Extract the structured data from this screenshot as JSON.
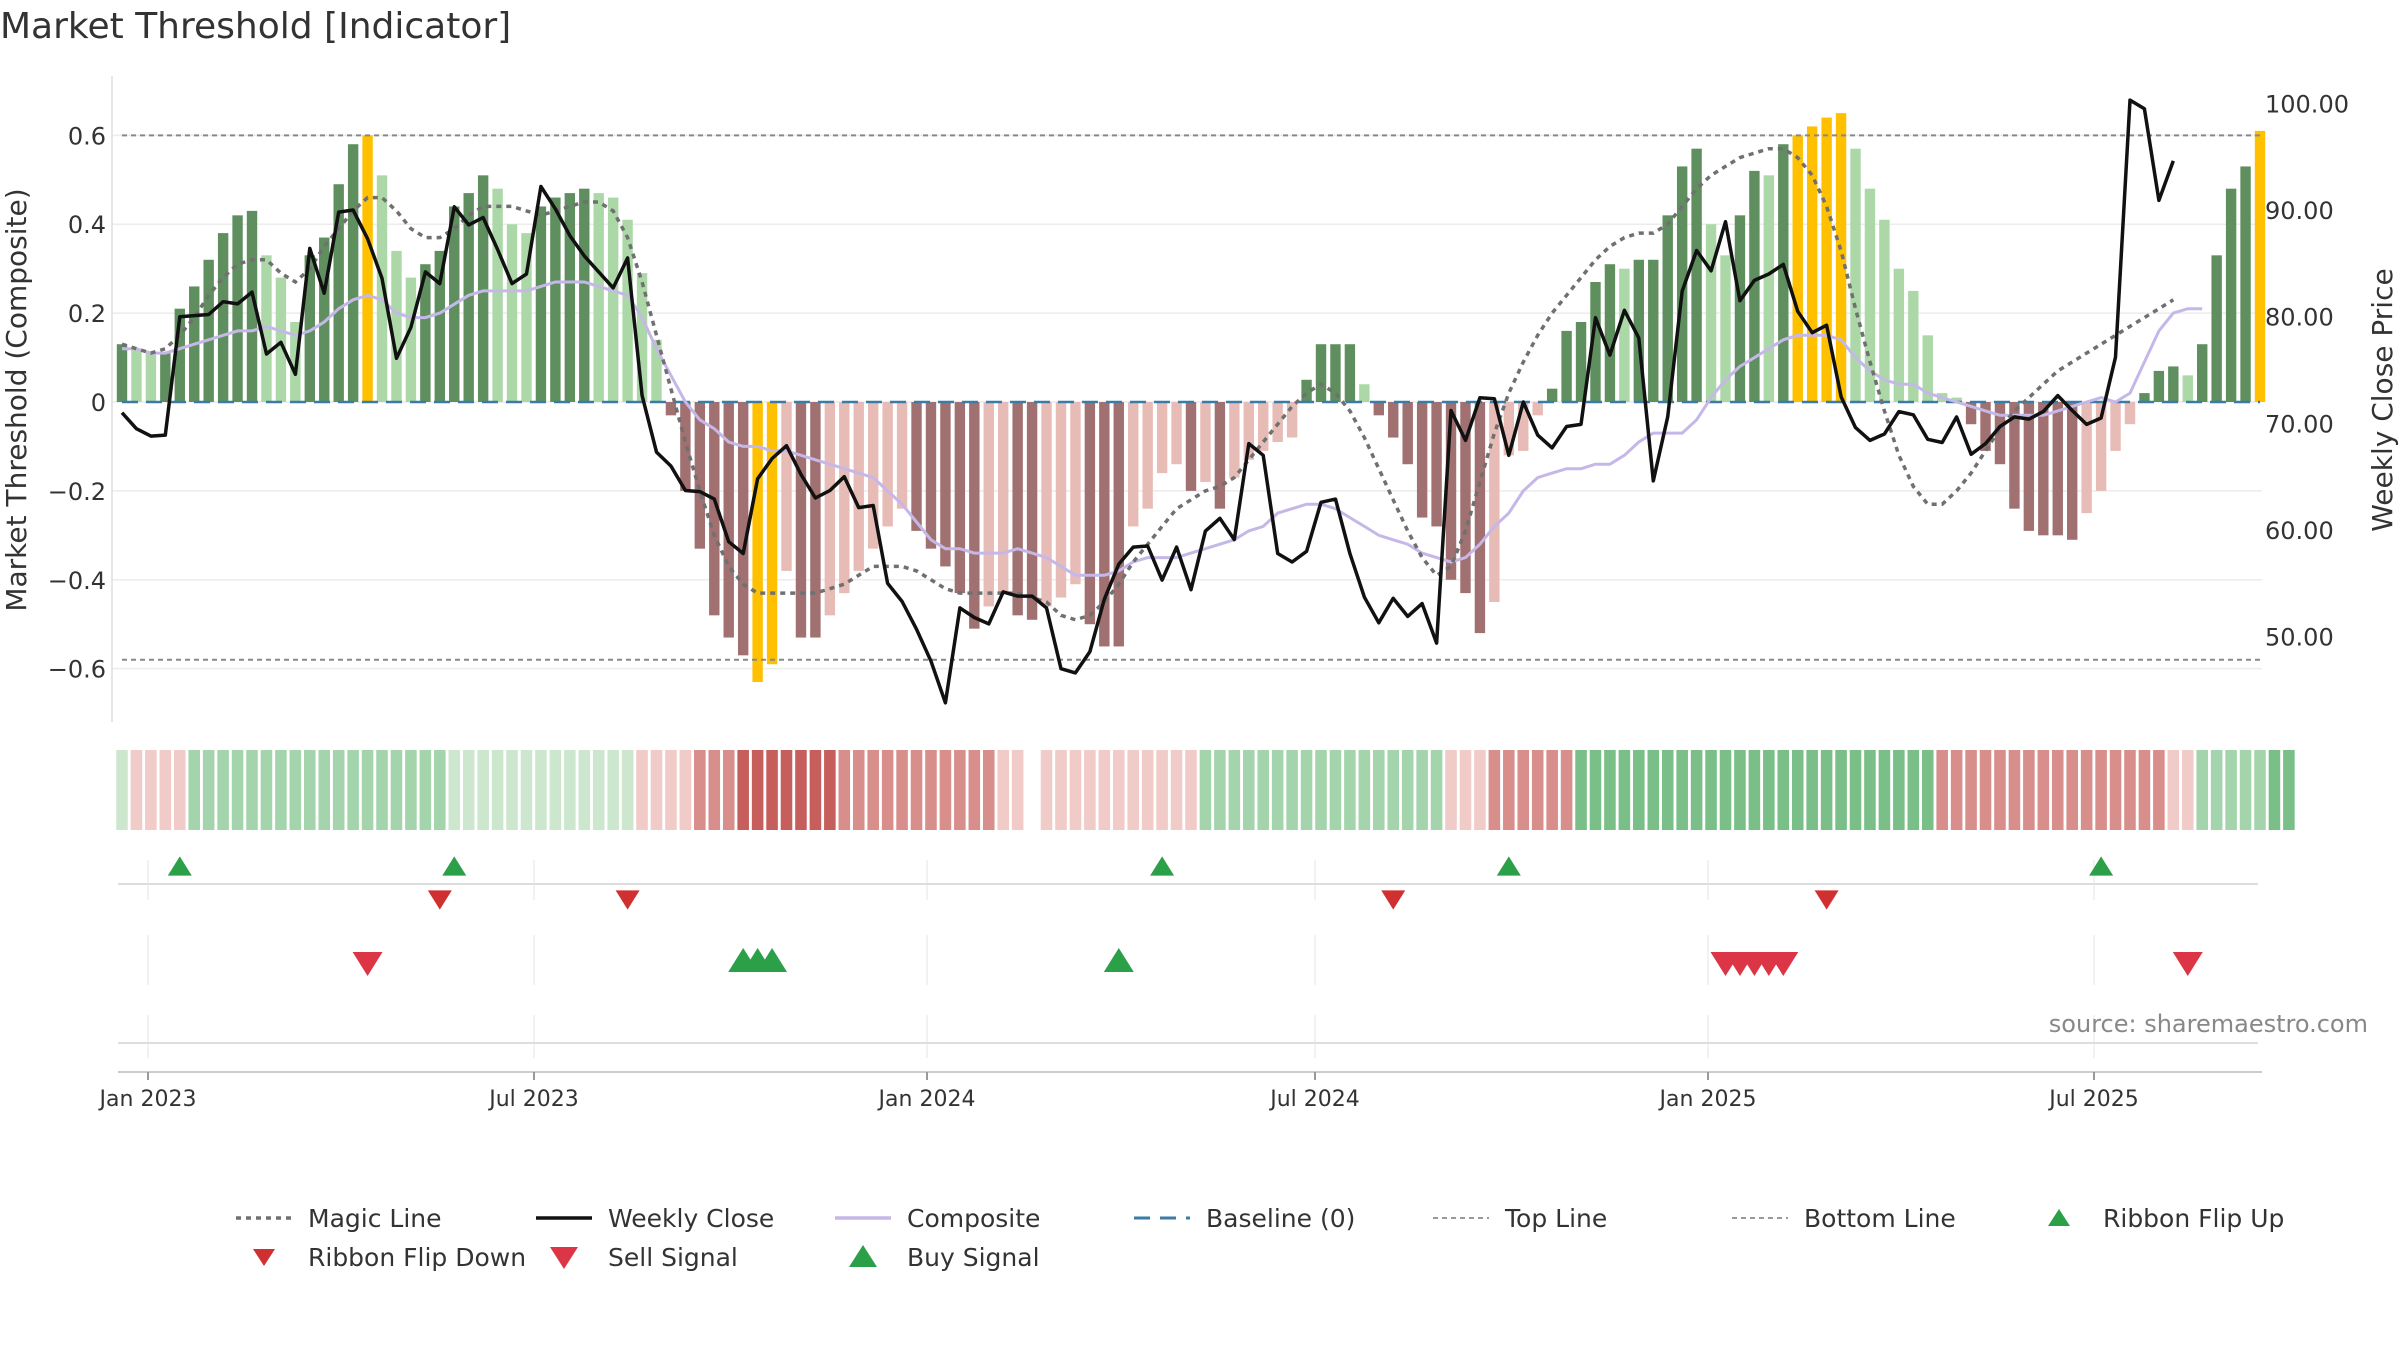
{
  "chart_data": {
    "type": "bar",
    "title": "Market Threshold [Indicator]",
    "source": "source: sharemaestro.com",
    "ylabel_left": "Market Threshold (Composite)",
    "ylabel_right": "Weekly Close Price",
    "ylim_left": [
      -0.72,
      0.72
    ],
    "ylim_right": [
      42,
      102
    ],
    "yticks_left": [
      "0.6",
      "0.4",
      "0.2",
      "0",
      "−0.2",
      "−0.4",
      "−0.6"
    ],
    "yticks_right": [
      "100.00",
      "90.00",
      "80.00",
      "70.00",
      "60.00",
      "50.00"
    ],
    "xticks": [
      "Jan 2023",
      "Jul 2023",
      "Jan 2024",
      "Jul 2024",
      "Jan 2025",
      "Jul 2025"
    ],
    "top_line": 0.6,
    "bottom_line": -0.58,
    "colors": {
      "pos_strong": "#5f8f5f",
      "pos_light": "#acd8a8",
      "neg_strong": "#a17070",
      "neg_light": "#e8bcb6",
      "extreme": "#ffc000",
      "close": "#111111",
      "composite": "#c5b8e8",
      "magic": "#707070",
      "baseline": "#3a7ca5",
      "buy": "#2ca048",
      "sell": "#dc3545"
    },
    "composite_bars": [
      0.13,
      0.12,
      0.11,
      0.11,
      0.21,
      0.26,
      0.32,
      0.38,
      0.42,
      0.43,
      0.33,
      0.28,
      0.18,
      0.33,
      0.37,
      0.49,
      0.58,
      0.6,
      0.51,
      0.34,
      0.28,
      0.31,
      0.34,
      0.44,
      0.47,
      0.51,
      0.48,
      0.4,
      0.38,
      0.44,
      0.46,
      0.47,
      0.48,
      0.47,
      0.46,
      0.41,
      0.29,
      0.14,
      -0.03,
      -0.2,
      -0.33,
      -0.48,
      -0.53,
      -0.57,
      -0.63,
      -0.59,
      -0.38,
      -0.53,
      -0.53,
      -0.48,
      -0.43,
      -0.38,
      -0.33,
      -0.28,
      -0.24,
      -0.29,
      -0.33,
      -0.37,
      -0.43,
      -0.51,
      -0.46,
      -0.43,
      -0.48,
      -0.49,
      -0.46,
      -0.44,
      -0.41,
      -0.5,
      -0.55,
      -0.55,
      -0.28,
      -0.24,
      -0.16,
      -0.14,
      -0.2,
      -0.18,
      -0.24,
      -0.17,
      -0.13,
      -0.11,
      -0.09,
      -0.08,
      0.05,
      0.13,
      0.13,
      0.13,
      0.04,
      -0.03,
      -0.08,
      -0.14,
      -0.26,
      -0.28,
      -0.4,
      -0.43,
      -0.52,
      -0.45,
      -0.12,
      -0.11,
      -0.03,
      0.03,
      0.16,
      0.18,
      0.27,
      0.31,
      0.3,
      0.32,
      0.32,
      0.42,
      0.53,
      0.57,
      0.4,
      0.33,
      0.42,
      0.52,
      0.51,
      0.58,
      0.6,
      0.62,
      0.64,
      0.65,
      0.57,
      0.48,
      0.41,
      0.3,
      0.25,
      0.15,
      0.02,
      0.01,
      -0.05,
      -0.11,
      -0.14,
      -0.24,
      -0.29,
      -0.3,
      -0.3,
      -0.31,
      -0.25,
      -0.2,
      -0.11,
      -0.05,
      0.02,
      0.07,
      0.08,
      0.06,
      0.13,
      0.33,
      0.48,
      0.53,
      0.61
    ],
    "weekly_close": [
      71.0,
      69.5,
      68.8,
      68.9,
      80.0,
      80.1,
      80.2,
      81.4,
      81.2,
      82.3,
      76.5,
      77.6,
      74.6,
      86.4,
      82.2,
      89.8,
      90.0,
      87.3,
      83.6,
      76.1,
      79.0,
      84.2,
      83.1,
      90.3,
      88.6,
      89.3,
      86.3,
      83.1,
      84.0,
      92.2,
      90.1,
      87.6,
      85.7,
      84.2,
      82.7,
      85.5,
      72.6,
      67.3,
      66.0,
      63.7,
      63.6,
      62.9,
      58.9,
      57.8,
      64.8,
      66.7,
      67.9,
      65.2,
      63.0,
      63.7,
      65.0,
      62.1,
      62.3,
      55.0,
      53.3,
      50.7,
      47.7,
      43.8,
      52.7,
      51.8,
      51.2,
      54.2,
      53.8,
      53.8,
      52.7,
      47.0,
      46.6,
      48.6,
      53.5,
      56.8,
      58.4,
      58.5,
      55.3,
      58.4,
      54.4,
      59.9,
      61.1,
      59.1,
      68.1,
      67.0,
      57.8,
      57.0,
      58.0,
      62.6,
      62.9,
      57.8,
      53.7,
      51.3,
      53.6,
      51.9,
      53.1,
      49.4,
      71.2,
      68.4,
      72.4,
      72.3,
      67.0,
      72.0,
      68.9,
      67.7,
      69.7,
      69.9,
      79.9,
      76.4,
      80.6,
      78.0,
      64.6,
      70.6,
      82.4,
      86.2,
      84.3,
      88.9,
      81.5,
      83.4,
      84.0,
      84.9,
      80.5,
      78.5,
      79.2,
      72.5,
      69.6,
      68.4,
      69.0,
      71.1,
      70.8,
      68.5,
      68.2,
      70.6,
      67.1,
      68.1,
      69.7,
      70.6,
      70.4,
      71.1,
      72.6,
      71.2,
      69.9,
      70.5,
      76.2,
      100.3,
      99.5,
      90.9,
      94.6
    ],
    "composite_line": [
      0.12,
      0.12,
      0.11,
      0.11,
      0.12,
      0.13,
      0.14,
      0.15,
      0.16,
      0.16,
      0.17,
      0.16,
      0.15,
      0.16,
      0.18,
      0.21,
      0.23,
      0.24,
      0.23,
      0.2,
      0.19,
      0.19,
      0.2,
      0.22,
      0.24,
      0.25,
      0.25,
      0.25,
      0.25,
      0.26,
      0.27,
      0.27,
      0.27,
      0.26,
      0.25,
      0.24,
      0.19,
      0.12,
      0.06,
      0.0,
      -0.04,
      -0.06,
      -0.09,
      -0.1,
      -0.1,
      -0.11,
      -0.11,
      -0.12,
      -0.13,
      -0.14,
      -0.15,
      -0.16,
      -0.17,
      -0.2,
      -0.23,
      -0.27,
      -0.31,
      -0.33,
      -0.33,
      -0.34,
      -0.34,
      -0.34,
      -0.33,
      -0.34,
      -0.35,
      -0.37,
      -0.39,
      -0.39,
      -0.39,
      -0.38,
      -0.36,
      -0.35,
      -0.35,
      -0.35,
      -0.34,
      -0.33,
      -0.32,
      -0.31,
      -0.29,
      -0.28,
      -0.25,
      -0.24,
      -0.23,
      -0.23,
      -0.24,
      -0.26,
      -0.28,
      -0.3,
      -0.31,
      -0.32,
      -0.34,
      -0.35,
      -0.36,
      -0.35,
      -0.32,
      -0.28,
      -0.25,
      -0.2,
      -0.17,
      -0.16,
      -0.15,
      -0.15,
      -0.14,
      -0.14,
      -0.12,
      -0.09,
      -0.07,
      -0.07,
      -0.07,
      -0.04,
      0.01,
      0.05,
      0.08,
      0.1,
      0.12,
      0.14,
      0.15,
      0.15,
      0.15,
      0.14,
      0.1,
      0.07,
      0.05,
      0.04,
      0.04,
      0.02,
      0.01,
      0.0,
      -0.01,
      -0.02,
      -0.03,
      -0.03,
      -0.03,
      -0.03,
      -0.02,
      -0.01,
      0.0,
      0.01,
      0.0,
      0.02,
      0.09,
      0.16,
      0.2,
      0.21,
      0.21
    ],
    "magic_line": [
      0.13,
      0.12,
      0.11,
      0.12,
      0.15,
      0.19,
      0.24,
      0.28,
      0.31,
      0.32,
      0.32,
      0.29,
      0.27,
      0.3,
      0.35,
      0.39,
      0.43,
      0.46,
      0.46,
      0.43,
      0.39,
      0.37,
      0.37,
      0.39,
      0.42,
      0.44,
      0.44,
      0.44,
      0.43,
      0.42,
      0.43,
      0.44,
      0.45,
      0.45,
      0.43,
      0.37,
      0.27,
      0.15,
      0.03,
      -0.09,
      -0.2,
      -0.3,
      -0.37,
      -0.41,
      -0.43,
      -0.43,
      -0.43,
      -0.43,
      -0.43,
      -0.42,
      -0.41,
      -0.39,
      -0.37,
      -0.37,
      -0.37,
      -0.38,
      -0.4,
      -0.42,
      -0.43,
      -0.43,
      -0.43,
      -0.43,
      -0.43,
      -0.44,
      -0.45,
      -0.48,
      -0.49,
      -0.48,
      -0.45,
      -0.41,
      -0.36,
      -0.32,
      -0.28,
      -0.24,
      -0.22,
      -0.2,
      -0.19,
      -0.17,
      -0.13,
      -0.09,
      -0.05,
      -0.01,
      0.02,
      0.04,
      0.02,
      -0.02,
      -0.08,
      -0.15,
      -0.22,
      -0.29,
      -0.35,
      -0.39,
      -0.37,
      -0.29,
      -0.18,
      -0.07,
      0.02,
      0.09,
      0.15,
      0.2,
      0.24,
      0.28,
      0.32,
      0.35,
      0.37,
      0.38,
      0.38,
      0.4,
      0.44,
      0.48,
      0.51,
      0.53,
      0.55,
      0.56,
      0.57,
      0.57,
      0.55,
      0.51,
      0.44,
      0.34,
      0.21,
      0.09,
      -0.02,
      -0.12,
      -0.19,
      -0.23,
      -0.23,
      -0.2,
      -0.16,
      -0.11,
      -0.06,
      -0.02,
      0.01,
      0.04,
      0.07,
      0.09,
      0.11,
      0.13,
      0.15,
      0.17,
      0.19,
      0.21,
      0.23
    ],
    "ribbon": [
      1,
      -1,
      -1,
      -1,
      -1,
      2,
      2,
      2,
      2,
      2,
      2,
      2,
      2,
      2,
      2,
      2,
      2,
      2,
      2,
      2,
      2,
      2,
      2,
      1,
      1,
      1,
      1,
      1,
      1,
      1,
      1,
      1,
      1,
      1,
      1,
      1,
      -1,
      -1,
      -1,
      -1,
      -2,
      -2,
      -2,
      -3,
      -3,
      -3,
      -3,
      -3,
      -3,
      -3,
      -2,
      -2,
      -2,
      -2,
      -2,
      -2,
      -2,
      -2,
      -2,
      -2,
      -2,
      -1,
      -1,
      0,
      -1,
      -1,
      -1,
      -1,
      -1,
      -1,
      -1,
      -1,
      -1,
      -1,
      -1,
      2,
      2,
      2,
      2,
      2,
      2,
      2,
      2,
      2,
      2,
      2,
      2,
      2,
      2,
      2,
      2,
      2,
      -1,
      -1,
      -1,
      -2,
      -2,
      -2,
      -2,
      -2,
      -2,
      3,
      3,
      3,
      3,
      3,
      3,
      3,
      3,
      3,
      3,
      3,
      3,
      3,
      3,
      3,
      3,
      3,
      3,
      3,
      3,
      3,
      3,
      3,
      3,
      3,
      -2,
      -2,
      -2,
      -2,
      -2,
      -2,
      -2,
      -2,
      -2,
      -2,
      -2,
      -2,
      -2,
      -2,
      -2,
      -2,
      -1,
      -1,
      2,
      2,
      2,
      2,
      2,
      3,
      3
    ],
    "ribbon_flip_up": [
      4,
      23,
      72,
      96,
      137
    ],
    "ribbon_flip_down": [
      22,
      35,
      88,
      118
    ],
    "sell_signal": [
      17,
      111,
      112,
      113,
      114,
      115,
      143
    ],
    "buy_signal": [
      43,
      44,
      45,
      69
    ],
    "legend": [
      "Magic Line",
      "Weekly Close",
      "Composite",
      "Baseline (0)",
      "Top Line",
      "Bottom Line",
      "Ribbon Flip Up",
      "Ribbon Flip Down",
      "Sell Signal",
      "Buy Signal"
    ]
  }
}
